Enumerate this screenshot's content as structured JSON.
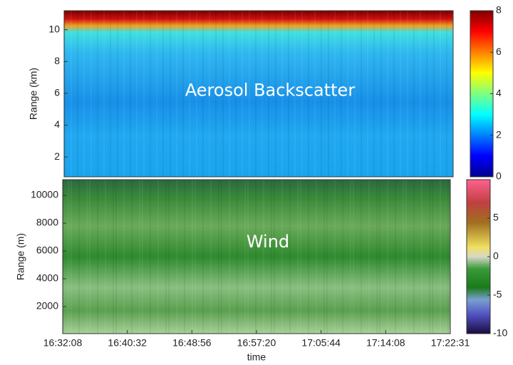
{
  "chart_data": [
    {
      "type": "heatmap",
      "annotation": "Aerosol Backscatter",
      "ylabel": "Range (km)",
      "ylim": [
        0.75,
        11.2
      ],
      "yticks": [
        2,
        4,
        6,
        8,
        10
      ],
      "colormap": "jet",
      "clim": [
        0,
        8
      ],
      "cticks": [
        0,
        2,
        4,
        6,
        8
      ]
    },
    {
      "type": "heatmap",
      "annotation": "Wind",
      "ylabel": "Range (m)",
      "xlabel": "time",
      "xticks": [
        "16:32:08",
        "16:40:32",
        "16:48:56",
        "16:57:20",
        "17:05:44",
        "17:14:08",
        "17:22:31"
      ],
      "ylim": [
        50,
        11130
      ],
      "yticks": [
        2000,
        4000,
        6000,
        8000,
        10000
      ],
      "colormap": "wind",
      "clim": [
        -10,
        10
      ],
      "cticks": [
        -10,
        -5,
        0,
        5
      ]
    }
  ]
}
